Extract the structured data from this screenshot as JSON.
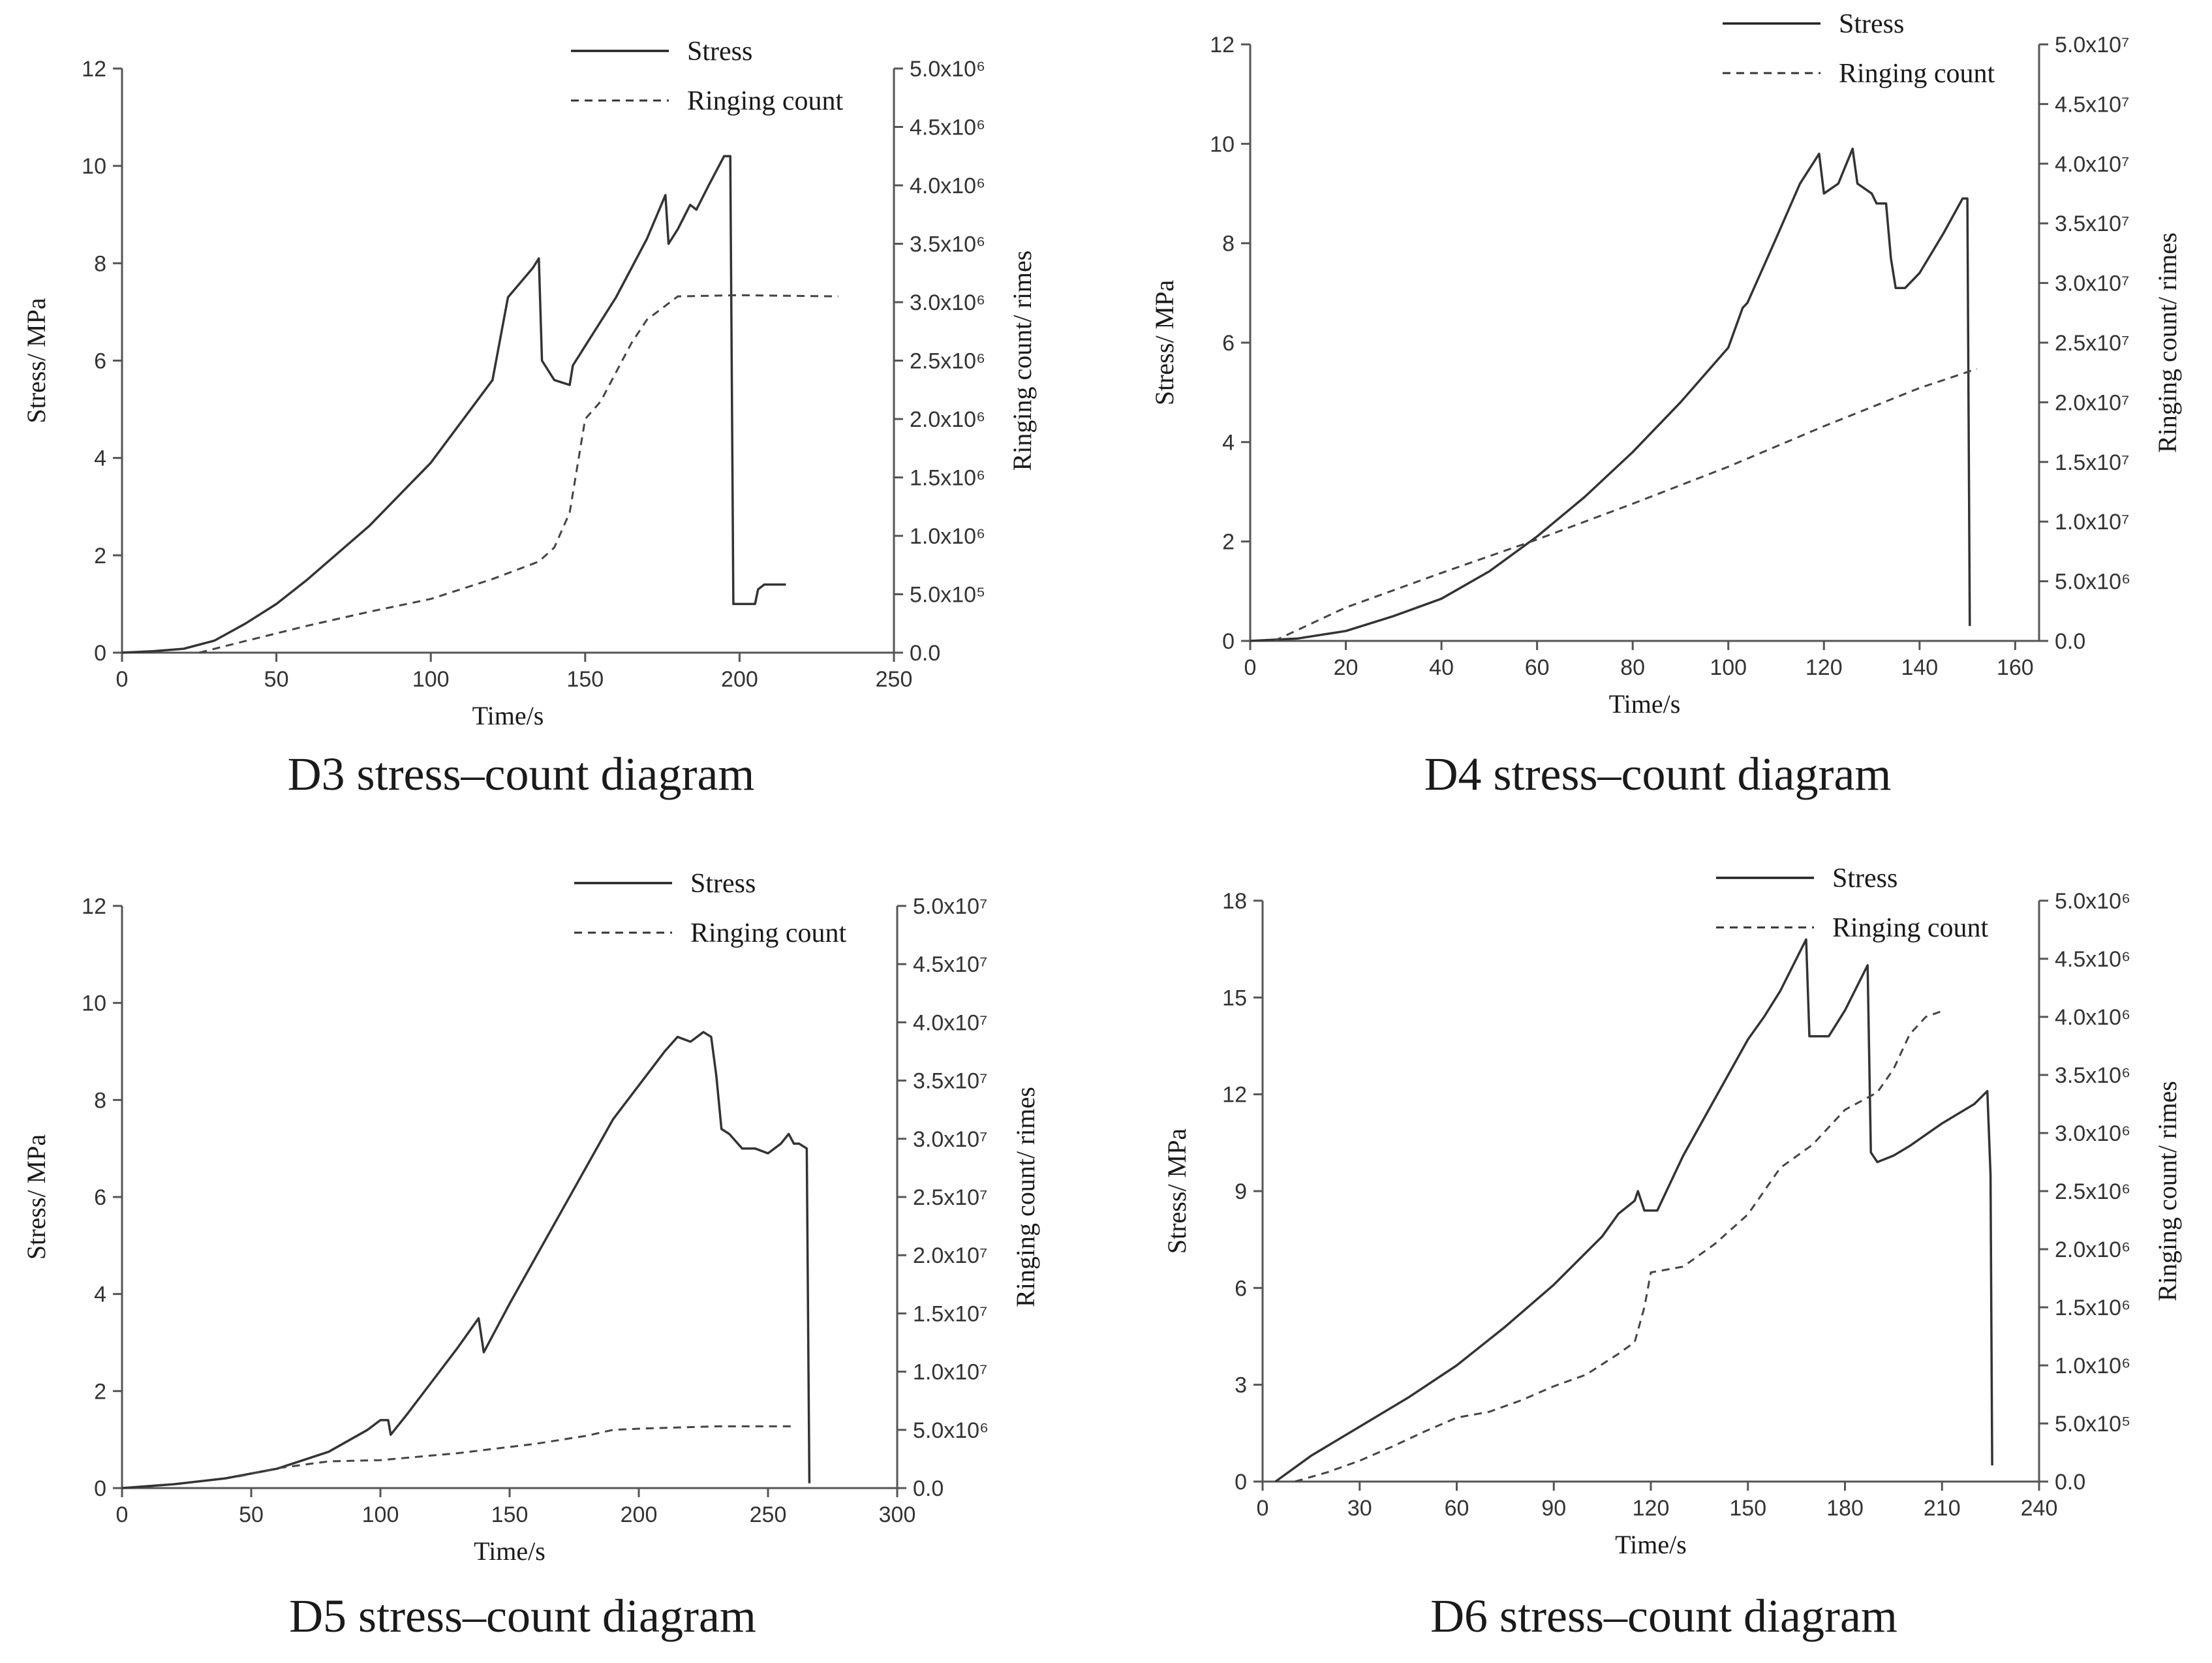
{
  "chart_data": [
    {
      "id": "D3",
      "type": "line",
      "caption": "D3 stress–count diagram",
      "xlabel": "Time/s",
      "ylabel": "Stress/ MPa",
      "y2label": "Ringing count/ rimes",
      "xlim": [
        0,
        250
      ],
      "ylim": [
        0,
        12
      ],
      "y2lim": [
        0,
        5000000
      ],
      "xticks": [
        "0",
        "50",
        "100",
        "150",
        "200",
        "250"
      ],
      "yticks": [
        "0",
        "2",
        "4",
        "6",
        "8",
        "10",
        "12"
      ],
      "y2ticks": [
        "0.0",
        "5.0x10⁵",
        "1.0x10⁶",
        "1.5x10⁶",
        "2.0x10⁶",
        "2.5x10⁶",
        "3.0x10⁶",
        "3.5x10⁶",
        "4.0x10⁶",
        "4.5x10⁶",
        "5.0x10⁶"
      ],
      "legend": [
        "Stress",
        "Ringing count"
      ],
      "series": [
        {
          "name": "Stress",
          "axis": "left",
          "style": "solid",
          "x": [
            0,
            10,
            20,
            30,
            40,
            50,
            60,
            80,
            100,
            120,
            125,
            133,
            135,
            136,
            140,
            145,
            146,
            150,
            160,
            170,
            176,
            177,
            180,
            184,
            186,
            190,
            195,
            197,
            198,
            200,
            205,
            206,
            208,
            215
          ],
          "y": [
            0,
            0.03,
            0.08,
            0.25,
            0.6,
            1.0,
            1.5,
            2.6,
            3.9,
            5.6,
            7.3,
            7.9,
            8.1,
            6.0,
            5.6,
            5.5,
            5.9,
            6.3,
            7.3,
            8.5,
            9.4,
            8.4,
            8.7,
            9.2,
            9.1,
            9.6,
            10.2,
            10.2,
            1.0,
            1.0,
            1.0,
            1.3,
            1.4,
            1.4
          ]
        },
        {
          "name": "Ringing count",
          "axis": "right",
          "style": "dashed",
          "x": [
            25,
            40,
            60,
            80,
            100,
            120,
            135,
            140,
            145,
            150,
            155,
            160,
            165,
            170,
            180,
            200,
            232
          ],
          "y": [
            0,
            100000,
            230000,
            350000,
            460000,
            630000,
            780000,
            900000,
            1200000,
            2000000,
            2150000,
            2400000,
            2650000,
            2850000,
            3050000,
            3060000,
            3050000
          ]
        }
      ]
    },
    {
      "id": "D4",
      "type": "line",
      "caption": "D4 stress–count diagram",
      "xlabel": "Time/s",
      "ylabel": "Stress/ MPa",
      "y2label": "Ringing count/ rimes",
      "xlim": [
        0,
        165
      ],
      "ylim": [
        0,
        12
      ],
      "y2lim": [
        0,
        50000000
      ],
      "xticks": [
        "0",
        "20",
        "40",
        "60",
        "80",
        "100",
        "120",
        "140",
        "160"
      ],
      "xtick_values": [
        0,
        20,
        40,
        60,
        80,
        100,
        120,
        140,
        160
      ],
      "yticks": [
        "0",
        "2",
        "4",
        "6",
        "8",
        "10",
        "12"
      ],
      "y2ticks": [
        "0.0",
        "5.0x10⁶",
        "1.0x10⁷",
        "1.5x10⁷",
        "2.0x10⁷",
        "2.5x10⁷",
        "3.0x10⁷",
        "3.5x10⁷",
        "4.0x10⁷",
        "4.5x10⁷",
        "5.0x10⁷"
      ],
      "legend": [
        "Stress",
        "Ringing count"
      ],
      "series": [
        {
          "name": "Stress",
          "axis": "left",
          "style": "solid",
          "x": [
            0,
            10,
            20,
            30,
            40,
            50,
            60,
            70,
            80,
            90,
            100,
            103,
            104,
            110,
            115,
            119,
            120,
            123,
            126,
            127,
            130,
            131,
            133,
            134,
            135,
            137,
            140,
            145,
            149,
            150,
            150.5
          ],
          "y": [
            0,
            0.05,
            0.2,
            0.5,
            0.85,
            1.4,
            2.1,
            2.9,
            3.8,
            4.8,
            5.9,
            6.7,
            6.8,
            8.1,
            9.2,
            9.8,
            9.0,
            9.2,
            9.9,
            9.2,
            9.0,
            8.8,
            8.8,
            7.7,
            7.1,
            7.1,
            7.4,
            8.2,
            8.9,
            8.9,
            0.3
          ]
        },
        {
          "name": "Ringing count",
          "axis": "right",
          "style": "dashed",
          "x": [
            5,
            20,
            40,
            60,
            80,
            100,
            120,
            140,
            152
          ],
          "y": [
            0,
            2800000,
            5700000,
            8500000,
            11500000,
            14600000,
            18000000,
            21200000,
            22800000
          ]
        }
      ]
    },
    {
      "id": "D5",
      "type": "line",
      "caption": "D5 stress–count diagram",
      "xlabel": "Time/s",
      "ylabel": "Stress/ MPa",
      "y2label": "Ringing count/ rimes",
      "xlim": [
        0,
        300
      ],
      "ylim": [
        0,
        12
      ],
      "y2lim": [
        0,
        50000000
      ],
      "xticks": [
        "0",
        "50",
        "100",
        "150",
        "200",
        "250",
        "300"
      ],
      "yticks": [
        "0",
        "2",
        "4",
        "6",
        "8",
        "10",
        "12"
      ],
      "y2ticks": [
        "0.0",
        "5.0x10⁶",
        "1.0x10⁷",
        "1.5x10⁷",
        "2.0x10⁷",
        "2.5x10⁷",
        "3.0x10⁷",
        "3.5x10⁷",
        "4.0x10⁷",
        "4.5x10⁷",
        "5.0x10⁷"
      ],
      "legend": [
        "Stress",
        "Ringing count"
      ],
      "series": [
        {
          "name": "Stress",
          "axis": "left",
          "style": "solid",
          "x": [
            0,
            20,
            40,
            60,
            80,
            95,
            100,
            103,
            104,
            110,
            120,
            130,
            138,
            140,
            141,
            150,
            170,
            190,
            210,
            215,
            220,
            225,
            228,
            230,
            232,
            235,
            240,
            245,
            250,
            255,
            258,
            260,
            262,
            265,
            266
          ],
          "y": [
            0,
            0.08,
            0.2,
            0.4,
            0.75,
            1.2,
            1.4,
            1.4,
            1.1,
            1.5,
            2.2,
            2.9,
            3.5,
            2.8,
            2.9,
            3.8,
            5.7,
            7.6,
            9.0,
            9.3,
            9.2,
            9.4,
            9.3,
            8.5,
            7.4,
            7.3,
            7.0,
            7.0,
            6.9,
            7.1,
            7.3,
            7.1,
            7.1,
            7.0,
            0.1
          ]
        },
        {
          "name": "Ringing count",
          "axis": "right",
          "style": "dashed",
          "x": [
            45,
            60,
            80,
            100,
            130,
            160,
            180,
            190,
            200,
            230,
            260
          ],
          "y": [
            1000000,
            1700000,
            2300000,
            2400000,
            3000000,
            3800000,
            4500000,
            5000000,
            5100000,
            5300000,
            5300000
          ]
        }
      ]
    },
    {
      "id": "D6",
      "type": "line",
      "caption": "D6 stress–count diagram",
      "xlabel": "Time/s",
      "ylabel": "Stress/ MPa",
      "y2label": "Ringing count/ rimes",
      "xlim": [
        0,
        240
      ],
      "ylim": [
        0,
        18
      ],
      "y2lim": [
        0,
        5000000
      ],
      "xticks": [
        "0",
        "30",
        "60",
        "90",
        "120",
        "150",
        "180",
        "210",
        "240"
      ],
      "yticks": [
        "0",
        "3",
        "6",
        "9",
        "12",
        "15",
        "18"
      ],
      "ytick_values": [
        0,
        3,
        6,
        9,
        12,
        15,
        18
      ],
      "y2ticks": [
        "0.0",
        "5.0x10⁵",
        "1.0x10⁶",
        "1.5x10⁶",
        "2.0x10⁶",
        "2.5x10⁶",
        "3.0x10⁶",
        "3.5x10⁶",
        "4.0x10⁶",
        "4.5x10⁶",
        "5.0x10⁶"
      ],
      "legend": [
        "Stress",
        "Ringing count"
      ],
      "series": [
        {
          "name": "Stress",
          "axis": "left",
          "style": "solid",
          "x": [
            4,
            15,
            30,
            45,
            60,
            75,
            90,
            105,
            110,
            115,
            116,
            118,
            122,
            130,
            140,
            150,
            155,
            160,
            168,
            169,
            175,
            180,
            187,
            188,
            190,
            195,
            200,
            210,
            220,
            224,
            225,
            225.5
          ],
          "y": [
            0,
            0.8,
            1.7,
            2.6,
            3.6,
            4.8,
            6.1,
            7.6,
            8.3,
            8.7,
            9.0,
            8.4,
            8.4,
            10.1,
            11.9,
            13.7,
            14.4,
            15.2,
            16.8,
            13.8,
            13.8,
            14.6,
            16.0,
            10.2,
            9.9,
            10.1,
            10.4,
            11.1,
            11.7,
            12.1,
            9.5,
            0.5
          ]
        },
        {
          "name": "Ringing count",
          "axis": "right",
          "style": "dashed",
          "x": [
            10,
            20,
            30,
            40,
            50,
            60,
            70,
            80,
            90,
            100,
            110,
            115,
            118,
            120,
            130,
            140,
            150,
            160,
            170,
            180,
            190,
            195,
            200,
            205,
            210
          ],
          "y": [
            0,
            80000,
            180000,
            300000,
            430000,
            550000,
            600000,
            700000,
            820000,
            920000,
            1100000,
            1200000,
            1500000,
            1800000,
            1850000,
            2050000,
            2300000,
            2700000,
            2900000,
            3200000,
            3350000,
            3550000,
            3850000,
            4000000,
            4050000
          ]
        }
      ]
    }
  ]
}
